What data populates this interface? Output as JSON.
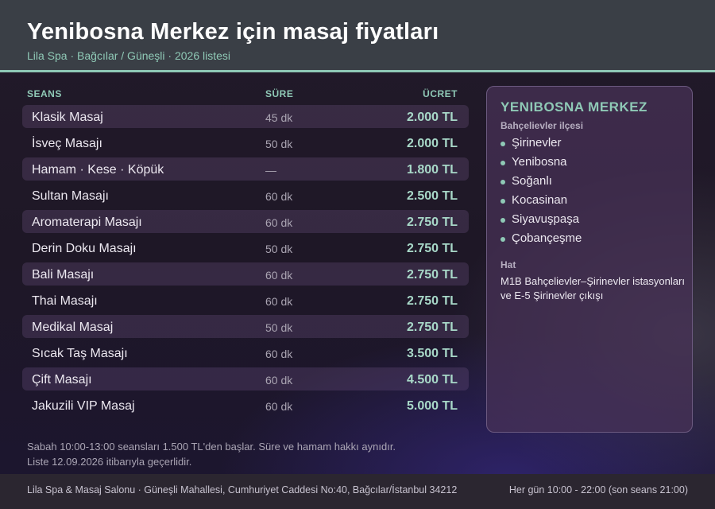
{
  "header": {
    "title": "Yenibosna Merkez için masaj fiyatları",
    "subtitle": "Lila Spa · Bağcılar / Güneşli · 2026 listesi"
  },
  "table": {
    "columns": {
      "session": "SEANS",
      "duration": "SÜRE",
      "price": "ÜCRET"
    },
    "rows": [
      {
        "name": "Klasik Masaj",
        "duration": "45 dk",
        "price": "2.000 TL"
      },
      {
        "name": "İsveç Masajı",
        "duration": "50 dk",
        "price": "2.000 TL"
      },
      {
        "name": "Hamam · Kese · Köpük",
        "duration": "—",
        "price": "1.800 TL"
      },
      {
        "name": "Sultan Masajı",
        "duration": "60 dk",
        "price": "2.500 TL"
      },
      {
        "name": "Aromaterapi Masajı",
        "duration": "60 dk",
        "price": "2.750 TL"
      },
      {
        "name": "Derin Doku Masajı",
        "duration": "50 dk",
        "price": "2.750 TL"
      },
      {
        "name": "Bali Masajı",
        "duration": "60 dk",
        "price": "2.750 TL"
      },
      {
        "name": "Thai Masajı",
        "duration": "60 dk",
        "price": "2.750 TL"
      },
      {
        "name": "Medikal Masaj",
        "duration": "50 dk",
        "price": "2.750 TL"
      },
      {
        "name": "Sıcak Taş Masajı",
        "duration": "60 dk",
        "price": "3.500 TL"
      },
      {
        "name": "Çift Masajı",
        "duration": "60 dk",
        "price": "4.500 TL"
      },
      {
        "name": "Jakuzili VIP Masaj",
        "duration": "60 dk",
        "price": "5.000 TL"
      }
    ]
  },
  "notes": {
    "line1": "Sabah 10:00-13:00 seansları 1.500 TL'den başlar. Süre ve hamam hakkı aynıdır.",
    "line2": "Liste 12.09.2026 itibarıyla geçerlidir."
  },
  "panel": {
    "title": "YENIBOSNA MERKEZ",
    "district": "Bahçelievler ilçesi",
    "neighborhoods": [
      "Şirinevler",
      "Yenibosna",
      "Soğanlı",
      "Kocasinan",
      "Siyavuşpaşa",
      "Çobançeşme"
    ],
    "line_label": "Hat",
    "line_text": "M1B Bahçelievler–Şirinevler istasyonları ve E-5 Şirinevler çıkışı"
  },
  "footer": {
    "address": "Lila Spa & Masaj Salonu · Güneşli Mahallesi, Cumhuriyet Caddesi No:40, Bağcılar/İstanbul 34212",
    "hours": "Her gün 10:00 - 22:00 (son seans 21:00)"
  },
  "colors": {
    "accent": "#8fc9b6",
    "header_bg": "#3a3f46",
    "panel_bg": "#48325a",
    "price": "#a8d8c8"
  }
}
